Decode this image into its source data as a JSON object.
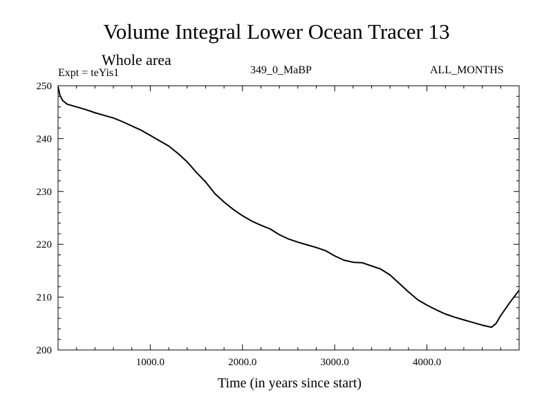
{
  "header": {
    "title": "Volume Integral Lower Ocean Tracer 13",
    "subtitle": "Whole area",
    "expt": "Expt = teYis1",
    "period": "349_0_MaBP",
    "months": "ALL_MONTHS"
  },
  "chart_data": {
    "type": "line",
    "title": "Volume Integral Lower Ocean Tracer 13",
    "xlabel": "Time (in years since start)",
    "ylabel": "",
    "xlim": [
      0,
      5000
    ],
    "ylim": [
      200,
      250
    ],
    "x_ticks": [
      1000,
      2000,
      3000,
      4000
    ],
    "x_tick_labels": [
      "1000.0",
      "2000.0",
      "3000.0",
      "4000.0"
    ],
    "y_ticks": [
      200,
      210,
      220,
      230,
      240,
      250
    ],
    "y_tick_labels": [
      "200",
      "210",
      "220",
      "230",
      "240",
      "250"
    ],
    "grid": false,
    "series": [
      {
        "name": "teYis1",
        "x": [
          0,
          20,
          50,
          100,
          200,
          300,
          400,
          500,
          600,
          700,
          800,
          900,
          1000,
          1100,
          1200,
          1300,
          1400,
          1500,
          1600,
          1700,
          1800,
          1900,
          2000,
          2100,
          2200,
          2300,
          2400,
          2500,
          2600,
          2700,
          2800,
          2900,
          3000,
          3100,
          3200,
          3300,
          3400,
          3500,
          3600,
          3700,
          3800,
          3900,
          4000,
          4100,
          4200,
          4300,
          4400,
          4500,
          4600,
          4700,
          4750,
          4800,
          4900,
          5000
        ],
        "values": [
          249.8,
          248.2,
          247.2,
          246.5,
          246.0,
          245.5,
          244.9,
          244.4,
          243.9,
          243.2,
          242.4,
          241.6,
          240.6,
          239.6,
          238.6,
          237.2,
          235.6,
          233.6,
          231.8,
          229.6,
          228.0,
          226.6,
          225.4,
          224.4,
          223.6,
          222.9,
          221.8,
          221.0,
          220.4,
          219.9,
          219.4,
          218.8,
          217.8,
          217.0,
          216.6,
          216.5,
          215.9,
          215.3,
          214.2,
          212.6,
          211.0,
          209.5,
          208.5,
          207.6,
          206.8,
          206.2,
          205.7,
          205.2,
          204.7,
          204.3,
          205.0,
          206.5,
          209.0,
          211.3
        ]
      }
    ]
  }
}
